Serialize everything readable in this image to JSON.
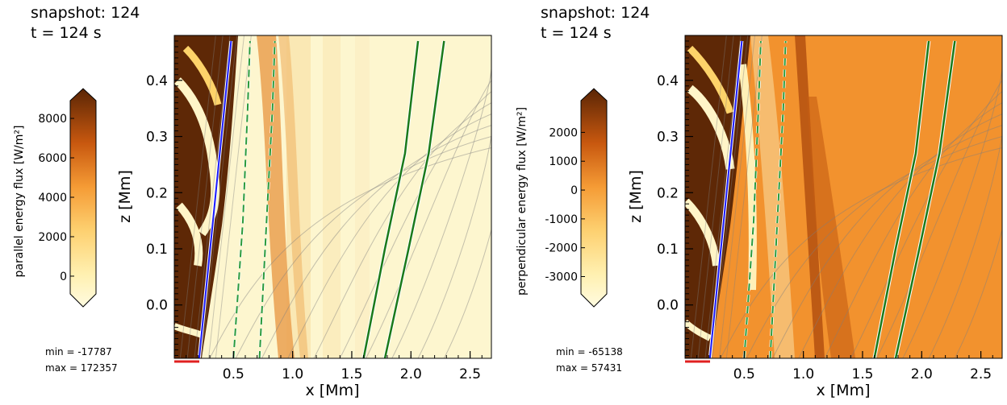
{
  "chart_data": [
    {
      "type": "heatmap",
      "header": {
        "snapshot": "snapshot: 124",
        "time": "t = 124 s"
      },
      "xlabel": "x [Mm]",
      "ylabel": "z [Mm]",
      "xticks": [
        "0.5",
        "1.0",
        "1.5",
        "2.0",
        "2.5"
      ],
      "yticks": [
        "0.0",
        "0.1",
        "0.2",
        "0.3",
        "0.4"
      ],
      "xlim": [
        0,
        2.68
      ],
      "ylim": [
        -0.095,
        0.48
      ],
      "colorbar": {
        "label": "parallel energy flux [W/m²]",
        "ticks": [
          "0",
          "2000",
          "4000",
          "6000",
          "8000"
        ],
        "tick_values": [
          0,
          2000,
          4000,
          6000,
          8000
        ],
        "range": [
          -900,
          8900
        ],
        "colormap": "YlOrBr"
      },
      "stats": {
        "min": "min = -17787",
        "max": "max = 172357"
      },
      "background_color": "#fdf6cf",
      "lines": [
        {
          "kind": "blue-solid",
          "color": "#1a1aff",
          "points": [
            [
              0.21,
              -0.095
            ],
            [
              0.48,
              0.47
            ]
          ]
        },
        {
          "kind": "green-dashed",
          "color": "#2a9a3a",
          "points": [
            [
              0.5,
              -0.095
            ],
            [
              0.58,
              0.15
            ],
            [
              0.62,
              0.35
            ],
            [
              0.64,
              0.47
            ]
          ]
        },
        {
          "kind": "green-dashed",
          "color": "#2a9a3a",
          "points": [
            [
              0.72,
              -0.095
            ],
            [
              0.78,
              0.15
            ],
            [
              0.83,
              0.35
            ],
            [
              0.85,
              0.47
            ]
          ]
        },
        {
          "kind": "green-solid",
          "color": "#1a7a1a",
          "points": [
            [
              1.6,
              -0.095
            ],
            [
              1.78,
              0.1
            ],
            [
              1.95,
              0.27
            ],
            [
              2.06,
              0.47
            ]
          ]
        },
        {
          "kind": "green-solid",
          "color": "#1a7a1a",
          "points": [
            [
              1.78,
              -0.095
            ],
            [
              1.98,
              0.1
            ],
            [
              2.15,
              0.27
            ],
            [
              2.28,
              0.47
            ]
          ]
        }
      ]
    },
    {
      "type": "heatmap",
      "header": {
        "snapshot": "snapshot: 124",
        "time": "t = 124 s"
      },
      "xlabel": "x [Mm]",
      "ylabel": "z [Mm]",
      "xticks": [
        "0.5",
        "1.0",
        "1.5",
        "2.0",
        "2.5"
      ],
      "yticks": [
        "0.0",
        "0.1",
        "0.2",
        "0.3",
        "0.4"
      ],
      "xlim": [
        0,
        2.68
      ],
      "ylim": [
        -0.095,
        0.48
      ],
      "colorbar": {
        "label": "perpendicular energy flux [W/m²]",
        "ticks": [
          "-3000",
          "-2000",
          "-1000",
          "0",
          "1000",
          "2000"
        ],
        "tick_values": [
          -3000,
          -2000,
          -1000,
          0,
          1000,
          2000
        ],
        "range": [
          -3600,
          3100
        ],
        "colormap": "YlOrBr"
      },
      "stats": {
        "min": "min = -65138",
        "max": "max = 57431"
      },
      "background_color": "#f2922e",
      "lines": [
        {
          "kind": "blue-solid",
          "color": "#1a1aff",
          "points": [
            [
              0.21,
              -0.095
            ],
            [
              0.48,
              0.47
            ]
          ]
        },
        {
          "kind": "green-dashed",
          "color": "#2a9a3a",
          "points": [
            [
              0.5,
              -0.095
            ],
            [
              0.58,
              0.15
            ],
            [
              0.62,
              0.35
            ],
            [
              0.64,
              0.47
            ]
          ]
        },
        {
          "kind": "green-dashed",
          "color": "#2a9a3a",
          "points": [
            [
              0.72,
              -0.095
            ],
            [
              0.78,
              0.15
            ],
            [
              0.83,
              0.35
            ],
            [
              0.85,
              0.47
            ]
          ]
        },
        {
          "kind": "green-solid",
          "color": "#1a7a1a",
          "points": [
            [
              1.6,
              -0.095
            ],
            [
              1.78,
              0.1
            ],
            [
              1.95,
              0.27
            ],
            [
              2.06,
              0.47
            ]
          ]
        },
        {
          "kind": "green-solid",
          "color": "#1a7a1a",
          "points": [
            [
              1.78,
              -0.095
            ],
            [
              1.98,
              0.1
            ],
            [
              2.15,
              0.27
            ],
            [
              2.28,
              0.47
            ]
          ]
        }
      ]
    }
  ]
}
